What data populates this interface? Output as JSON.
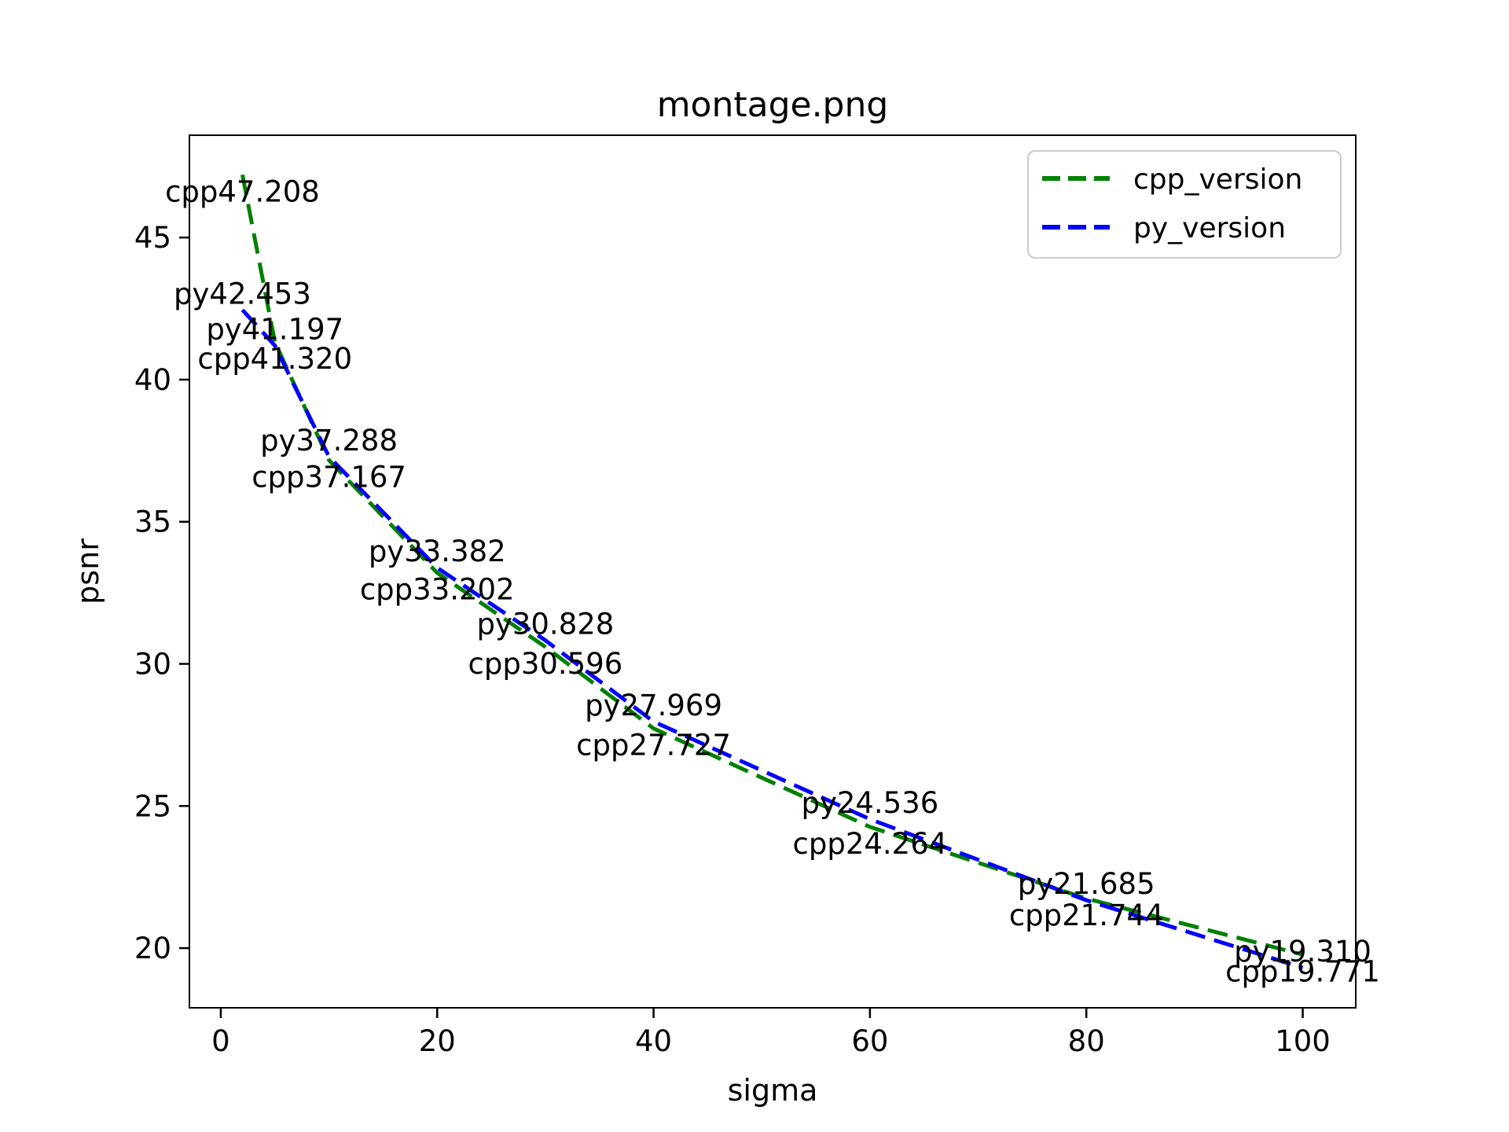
{
  "chart_data": {
    "type": "line",
    "title": "montage.png",
    "xlabel": "sigma",
    "ylabel": "psnr",
    "xlim": [
      -2.9,
      104.9
    ],
    "ylim": [
      17.9,
      48.6
    ],
    "xticks": [
      0,
      20,
      40,
      60,
      80,
      100
    ],
    "yticks": [
      20,
      25,
      30,
      35,
      40,
      45
    ],
    "grid": false,
    "line_style": "dashed",
    "x": [
      2,
      5,
      10,
      20,
      30,
      40,
      60,
      80,
      100
    ],
    "series": [
      {
        "name": "cpp_version",
        "color": "#008000",
        "values": [
          47.208,
          41.32,
          37.167,
          33.202,
          30.596,
          27.727,
          24.264,
          21.744,
          19.771
        ],
        "point_labels": [
          "cpp47.208",
          "cpp41.320",
          "cpp37.167",
          "cpp33.202",
          "cpp30.596",
          "cpp27.727",
          "cpp24.264",
          "cpp21.744",
          "cpp19.771"
        ],
        "label_side": "below"
      },
      {
        "name": "py_version",
        "color": "#0000ff",
        "values": [
          42.453,
          41.197,
          37.288,
          33.382,
          30.828,
          27.969,
          24.536,
          21.685,
          19.31
        ],
        "point_labels": [
          "py42.453",
          "py41.197",
          "py37.288",
          "py33.382",
          "py30.828",
          "py27.969",
          "py24.536",
          "py21.685",
          "py19.310"
        ],
        "label_side": "above"
      }
    ],
    "legend": {
      "position": "upper right",
      "entries": [
        "cpp_version",
        "py_version"
      ]
    }
  }
}
